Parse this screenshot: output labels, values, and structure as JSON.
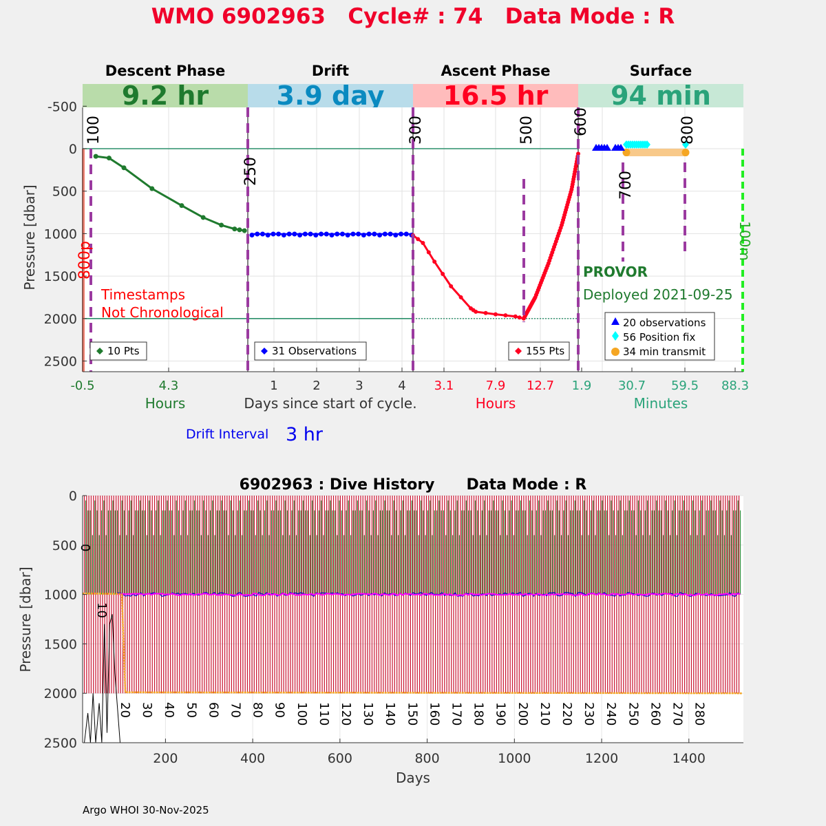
{
  "title": "WMO 6902963   Cycle# : 74   Data Mode : R",
  "footer": "Argo WHOI 30-Nov-2025",
  "colors": {
    "title": "#f0002a",
    "descent": "#1f7a2e",
    "drift": "#0000ff",
    "ascent": "#ff0020",
    "surface": "#2aa37a",
    "marker": "#9b3aa0",
    "orange": "#f5a623",
    "cyan": "#00ffff",
    "transmit_band": "#f8c98a",
    "ref_line": "#2a8f6a"
  },
  "chart_data": [
    {
      "type": "line",
      "name": "cycle-profile",
      "ylabel": "Pressure [dbar]",
      "ylim": [
        -750,
        2600
      ],
      "yticks": [
        -500,
        0,
        500,
        1000,
        1500,
        2000,
        2500
      ],
      "xlabel": "Days since start of cycle.",
      "reference_lines": [
        0,
        2000
      ],
      "phases": [
        {
          "key": "descent",
          "title": "Descent Phase",
          "duration": "9.2 hr",
          "band_color": "#b9dcaa",
          "text_color": "#1f7a2e",
          "unit_label": "Hours",
          "tick_labels": [
            "-0.5",
            "4.3"
          ],
          "legend": "10 Pts",
          "points": [
            [
              0.08,
              90
            ],
            [
              0.16,
              110
            ],
            [
              0.25,
              225
            ],
            [
              0.42,
              470
            ],
            [
              0.6,
              670
            ],
            [
              0.73,
              810
            ],
            [
              0.84,
              900
            ],
            [
              0.92,
              945
            ],
            [
              0.95,
              955
            ],
            [
              0.98,
              965
            ]
          ]
        },
        {
          "key": "drift",
          "title": "Drift",
          "duration": "3.9 day",
          "band_color": "#b8dcea",
          "text_color": "#0a8ac0",
          "unit_label": "",
          "tick_labels": [
            "1",
            "2",
            "3",
            "4"
          ],
          "legend": "31 Observations",
          "level": 1005
        },
        {
          "key": "ascent",
          "title": "Ascent Phase",
          "duration": "16.5 hr",
          "band_color": "#ffbcbc",
          "text_color": "#ff0020",
          "unit_label": "Hours",
          "tick_labels": [
            "3.1",
            "7.9",
            "12.7"
          ],
          "legend": "155 Pts",
          "points": [
            [
              0.0,
              1020
            ],
            [
              0.06,
              1110
            ],
            [
              0.13,
              1330
            ],
            [
              0.23,
              1620
            ],
            [
              0.35,
              1880
            ],
            [
              0.38,
              1920
            ],
            [
              0.5,
              1950
            ],
            [
              0.62,
              1975
            ],
            [
              0.67,
              2000
            ],
            [
              0.74,
              1750
            ],
            [
              0.82,
              1350
            ],
            [
              0.9,
              900
            ],
            [
              0.96,
              480
            ],
            [
              1.0,
              60
            ]
          ]
        },
        {
          "key": "surface",
          "title": "Surface",
          "duration": "94 min",
          "band_color": "#c7e8d6",
          "text_color": "#2aa37a",
          "unit_label": "Minutes",
          "tick_labels": [
            "1.9",
            "30.7",
            "59.5",
            "88.3"
          ],
          "platform": "PROVOR",
          "deployed": "Deployed 2021-09-25",
          "legend_items": [
            "20 observations",
            "56 Position fix",
            "34 min transmit"
          ]
        }
      ],
      "vertical_markers": [
        "100",
        "250",
        "300",
        "500",
        "600",
        "700",
        "800"
      ],
      "side_labels": [
        "800p",
        "100m"
      ],
      "warning": [
        "Timestamps",
        "Not Chronological"
      ],
      "drift_interval_label": "Drift Interval",
      "drift_interval_value": "3 hr"
    },
    {
      "type": "bar",
      "name": "dive-history",
      "title": "6902963 : Dive History      Data Mode : R",
      "xlabel": "Days",
      "ylabel": "Pressure [dbar]",
      "xlim": [
        10,
        1525
      ],
      "ylim": [
        0,
        2500
      ],
      "xticks": [
        200,
        400,
        600,
        800,
        1000,
        1200,
        1400
      ],
      "yticks": [
        0,
        500,
        1000,
        1500,
        2000,
        2500
      ],
      "park_pressure": 1000,
      "profile_pressure": 2000,
      "cycle_labels": [
        "0",
        "10",
        "20",
        "30",
        "40",
        "50",
        "60",
        "70",
        "80",
        "90",
        "100",
        "110",
        "120",
        "130",
        "140",
        "150",
        "160",
        "170",
        "180",
        "190",
        "200",
        "210",
        "220",
        "230",
        "240",
        "250",
        "260",
        "270",
        "280"
      ]
    }
  ]
}
